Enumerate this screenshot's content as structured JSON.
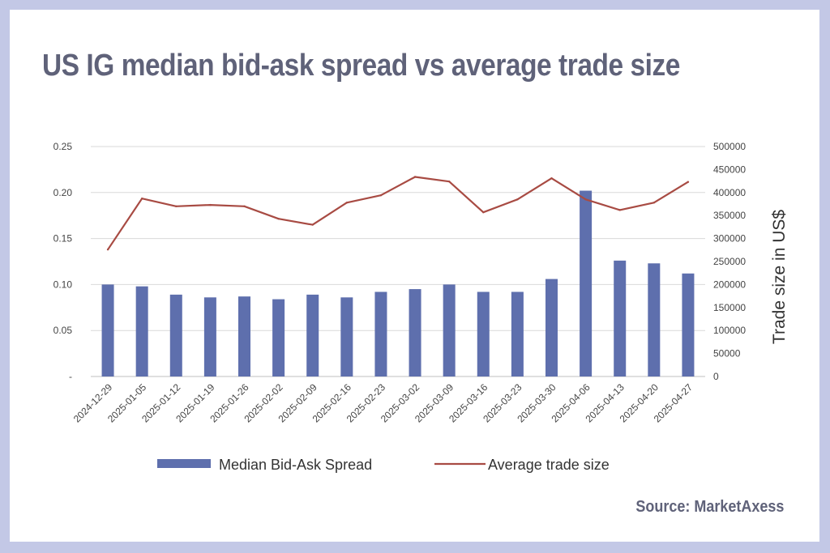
{
  "title": "US IG median bid-ask spread vs average trade size",
  "source": "Source: MarketAxess",
  "colors": {
    "background": "#c3c8e6",
    "card": "#ffffff",
    "title": "#5f6279",
    "bar": "#5e6fad",
    "line": "#a84b43",
    "grid": "#d9d9d9"
  },
  "chart_data": {
    "type": "bar",
    "categories": [
      "2024-12-29",
      "2025-01-05",
      "2025-01-12",
      "2025-01-19",
      "2025-01-26",
      "2025-02-02",
      "2025-02-09",
      "2025-02-16",
      "2025-02-23",
      "2025-03-02",
      "2025-03-09",
      "2025-03-16",
      "2025-03-23",
      "2025-03-30",
      "2025-04-06",
      "2025-04-13",
      "2025-04-20",
      "2025-04-27"
    ],
    "series": [
      {
        "name": "Median Bid-Ask Spread",
        "type": "bar",
        "axis": "left",
        "values": [
          0.1,
          0.098,
          0.089,
          0.086,
          0.087,
          0.084,
          0.089,
          0.086,
          0.092,
          0.095,
          0.1,
          0.092,
          0.092,
          0.106,
          0.202,
          0.126,
          0.123,
          0.112
        ]
      },
      {
        "name": "Average trade size",
        "type": "line",
        "axis": "right",
        "values": [
          276000,
          387000,
          370000,
          373000,
          370000,
          343000,
          330000,
          378000,
          394000,
          434000,
          424000,
          357000,
          385000,
          431000,
          385000,
          362000,
          378000,
          423000
        ]
      }
    ],
    "y_left": {
      "ylim": [
        0,
        0.25
      ],
      "ticks": [
        0,
        0.05,
        0.1,
        0.15,
        0.2,
        0.25
      ],
      "tick_labels": [
        "-",
        "0.05",
        "0.10",
        "0.15",
        "0.20",
        "0.25"
      ]
    },
    "y_right": {
      "ylim": [
        0,
        500000
      ],
      "ticks": [
        0,
        50000,
        100000,
        150000,
        200000,
        250000,
        300000,
        350000,
        400000,
        450000,
        500000
      ],
      "tick_labels": [
        "0",
        "50000",
        "100000",
        "150000",
        "200000",
        "250000",
        "300000",
        "350000",
        "400000",
        "450000",
        "500000"
      ],
      "label": "Trade size in US$"
    },
    "grid": true,
    "legend": "bottom"
  }
}
